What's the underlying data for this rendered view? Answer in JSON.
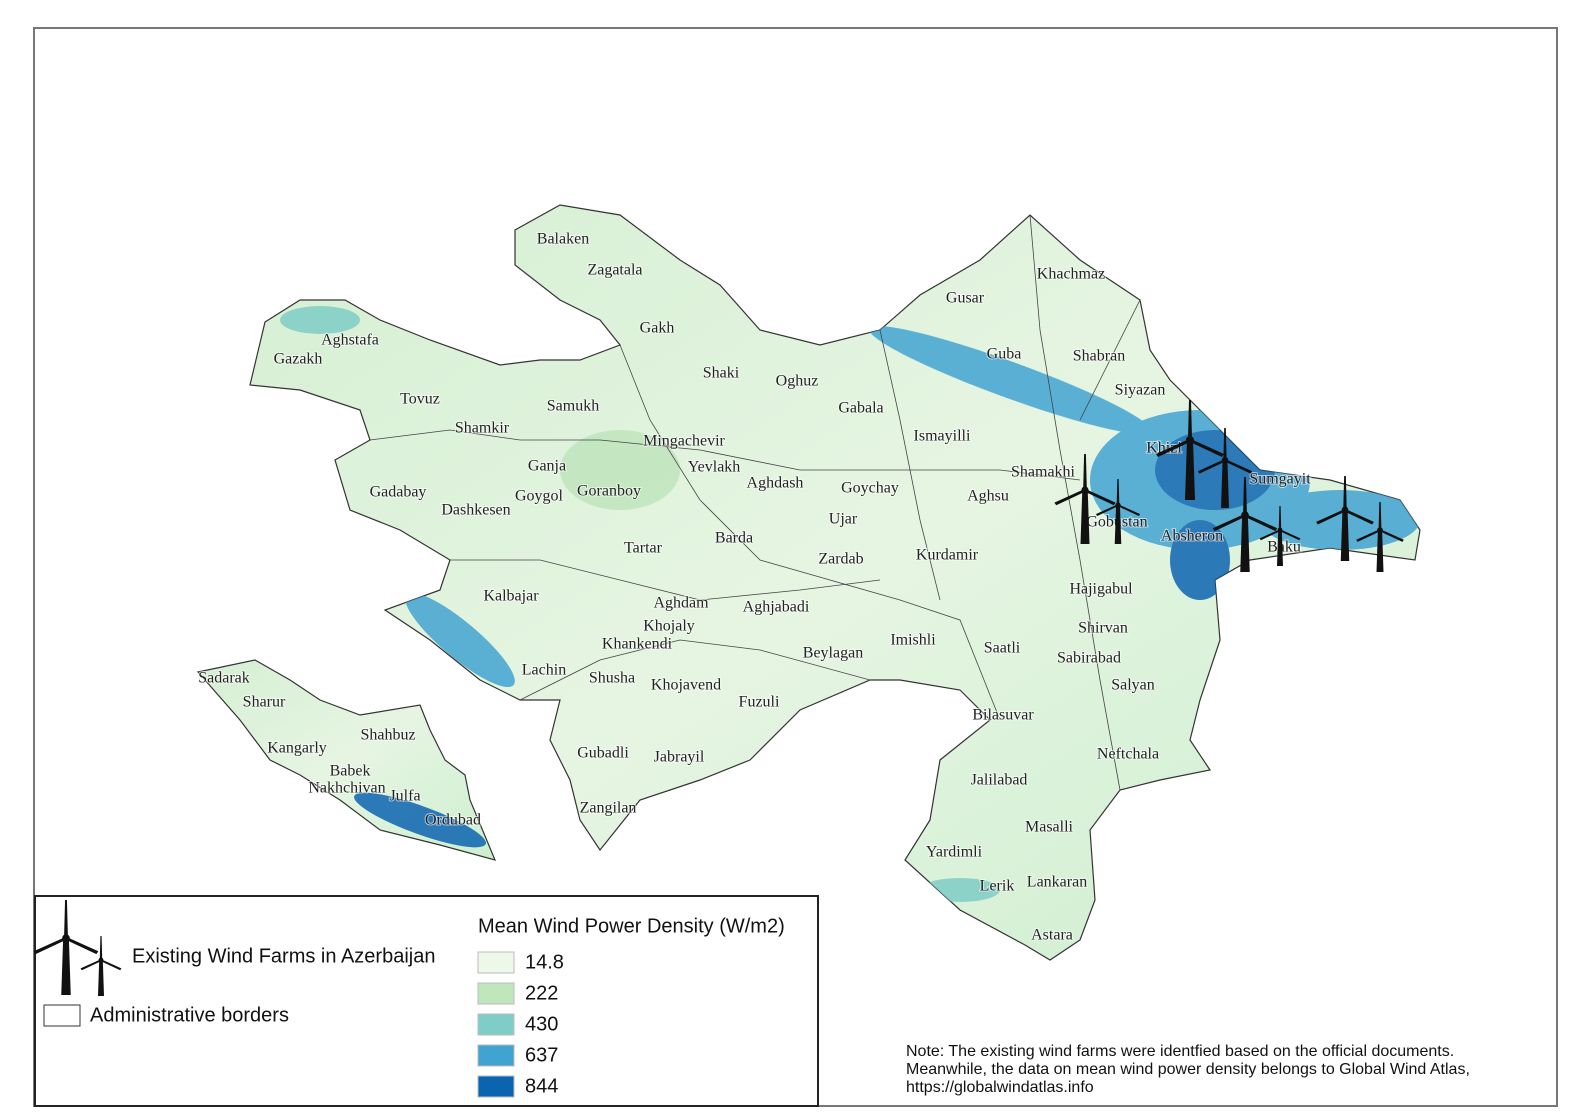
{
  "regions": [
    "Balaken",
    "Zagatala",
    "Gakh",
    "Aghstafa",
    "Gazakh",
    "Shaki",
    "Oghuz",
    "Tovuz",
    "Samukh",
    "Gabala",
    "Shamkir",
    "Mingachevir",
    "Ismayilli",
    "Ganja",
    "Yevlakh",
    "Gadabay",
    "Goygol",
    "Goranboy",
    "Aghdash",
    "Goychay",
    "Dashkesen",
    "Ujar",
    "Barda",
    "Tartar",
    "Zardab",
    "Kurdamir",
    "Kalbajar",
    "Aghdam",
    "Aghjabadi",
    "Khojaly",
    "Khankendi",
    "Imishli",
    "Beylagan",
    "Lachin",
    "Shusha",
    "Khojavend",
    "Fuzuli",
    "Gubadli",
    "Jabrayil",
    "Zangilan",
    "Sadarak",
    "Sharur",
    "Kangarly",
    "Shahbuz",
    "Babek",
    "Nakhchivan",
    "Julfa",
    "Ordubad",
    "Khachmaz",
    "Gusar",
    "Guba",
    "Shabran",
    "Siyazan",
    "Khizi",
    "Shamakhi",
    "Sumgayit",
    "Aghsu",
    "Gobustan",
    "Absheron",
    "Baku",
    "Hajigabul",
    "Shirvan",
    "Saatli",
    "Sabirabad",
    "Salyan",
    "Bilasuvar",
    "Neftchala",
    "Jalilabad",
    "Masalli",
    "Yardimli",
    "Lerik",
    "Lankaran",
    "Astara"
  ],
  "legend": {
    "wind_farms": "Existing Wind Farms in Azerbaijan",
    "borders": "Administrative borders",
    "density_title": "Mean Wind Power Density (W/m2)",
    "density_classes": [
      {
        "value": 14.8,
        "color": "#eef8ea"
      },
      {
        "value": 222,
        "color": "#bfe6bd"
      },
      {
        "value": 430,
        "color": "#7fcdc7"
      },
      {
        "value": 637,
        "color": "#41a3d1"
      },
      {
        "value": 844,
        "color": "#0b64b0"
      }
    ]
  },
  "note": [
    "Note: The existing wind farms were identfied based on the official documents.",
    "Meanwhile, the data on mean wind power density belongs to Global Wind Atlas,",
    "https://globalwindatlas.info"
  ]
}
